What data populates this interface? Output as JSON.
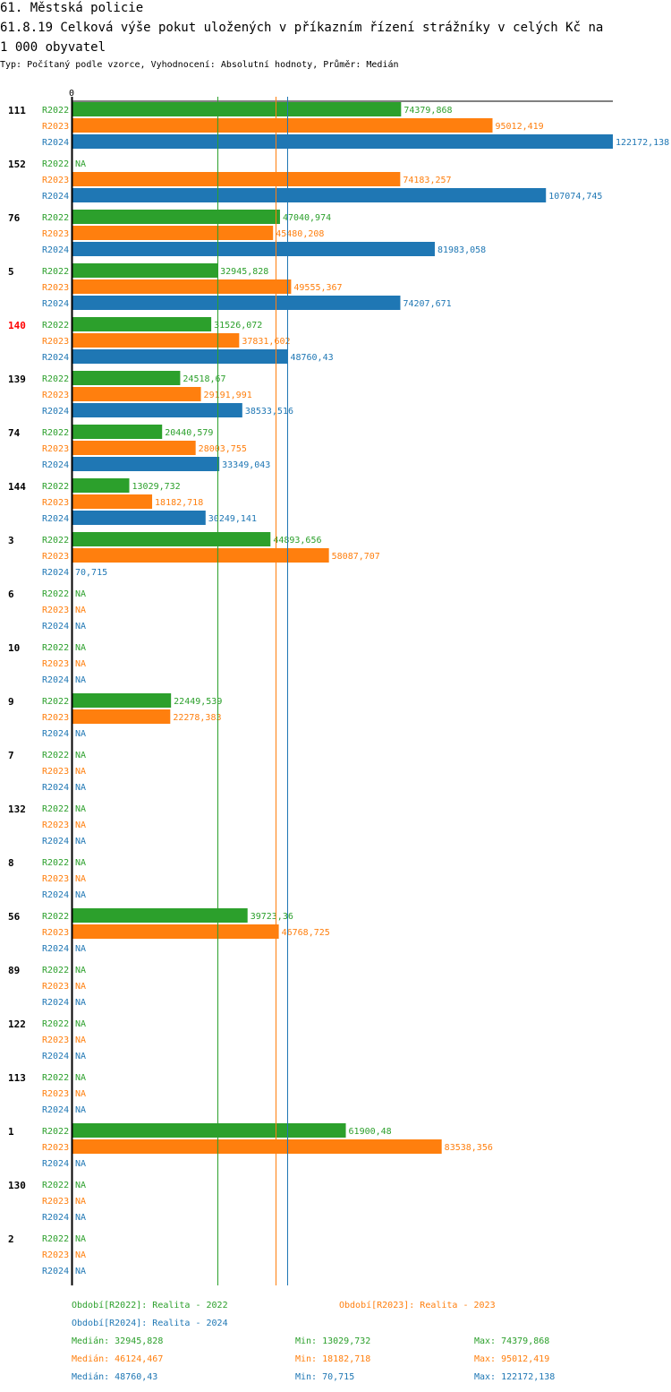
{
  "title_line1": "61. Městská policie",
  "title_line2": "61.8.19 Celková výše pokut uložených v příkazním řízení strážníky v celých Kč na",
  "title_line3": "1 000 obyvatel",
  "subtitle": "Typ: Počítaný podle vzorce, Vyhodnocení: Absolutní hodnoty, Průměr: Medián",
  "colors": {
    "R2022": "#2ca02c",
    "R2023": "#ff7f0e",
    "R2024": "#1f77b4",
    "highlight": "#ff0000"
  },
  "chart_data": {
    "type": "bar",
    "orientation": "horizontal",
    "axis_zero_label": "0",
    "xlim": [
      0,
      122172.138
    ],
    "series_names": [
      "R2022",
      "R2023",
      "R2024"
    ],
    "highlight_category": "140",
    "categories": [
      {
        "label": "111",
        "values": [
          "74379,868",
          "95012,419",
          "122172,138"
        ]
      },
      {
        "label": "152",
        "values": [
          "NA",
          "74183,257",
          "107074,745"
        ]
      },
      {
        "label": "76",
        "values": [
          "47040,974",
          "45480,208",
          "81983,058"
        ]
      },
      {
        "label": "5",
        "values": [
          "32945,828",
          "49555,367",
          "74207,671"
        ]
      },
      {
        "label": "140",
        "values": [
          "31526,072",
          "37831,602",
          "48760,43"
        ]
      },
      {
        "label": "139",
        "values": [
          "24518,67",
          "29191,991",
          "38533,516"
        ]
      },
      {
        "label": "74",
        "values": [
          "20440,579",
          "28003,755",
          "33349,043"
        ]
      },
      {
        "label": "144",
        "values": [
          "13029,732",
          "18182,718",
          "30249,141"
        ]
      },
      {
        "label": "3",
        "values": [
          "44893,656",
          "58087,707",
          "70,715"
        ]
      },
      {
        "label": "6",
        "values": [
          "NA",
          "NA",
          "NA"
        ]
      },
      {
        "label": "10",
        "values": [
          "NA",
          "NA",
          "NA"
        ]
      },
      {
        "label": "9",
        "values": [
          "22449,539",
          "22278,383",
          "NA"
        ]
      },
      {
        "label": "7",
        "values": [
          "NA",
          "NA",
          "NA"
        ]
      },
      {
        "label": "132",
        "values": [
          "NA",
          "NA",
          "NA"
        ]
      },
      {
        "label": "8",
        "values": [
          "NA",
          "NA",
          "NA"
        ]
      },
      {
        "label": "56",
        "values": [
          "39723,36",
          "46768,725",
          "NA"
        ]
      },
      {
        "label": "89",
        "values": [
          "NA",
          "NA",
          "NA"
        ]
      },
      {
        "label": "122",
        "values": [
          "NA",
          "NA",
          "NA"
        ]
      },
      {
        "label": "113",
        "values": [
          "NA",
          "NA",
          "NA"
        ]
      },
      {
        "label": "1",
        "values": [
          "61900,48",
          "83538,356",
          "NA"
        ]
      },
      {
        "label": "130",
        "values": [
          "NA",
          "NA",
          "NA"
        ]
      },
      {
        "label": "2",
        "values": [
          "NA",
          "NA",
          "NA"
        ]
      }
    ],
    "median_lines": [
      {
        "series": "R2022",
        "value": 32945.828
      },
      {
        "series": "R2023",
        "value": 46124.467
      },
      {
        "series": "R2024",
        "value": 48760.43
      }
    ]
  },
  "legend": {
    "R2022": "Období[R2022]: Realita - 2022",
    "R2023": "Období[R2023]: Realita - 2023",
    "R2024": "Období[R2024]: Realita - 2024"
  },
  "stats": [
    {
      "series": "R2022",
      "median": "Medián: 32945,828",
      "min": "Min: 13029,732",
      "max": "Max: 74379,868"
    },
    {
      "series": "R2023",
      "median": "Medián: 46124,467",
      "min": "Min: 18182,718",
      "max": "Max: 95012,419"
    },
    {
      "series": "R2024",
      "median": "Medián: 48760,43",
      "min": "Min: 70,715",
      "max": "Max: 122172,138"
    }
  ]
}
